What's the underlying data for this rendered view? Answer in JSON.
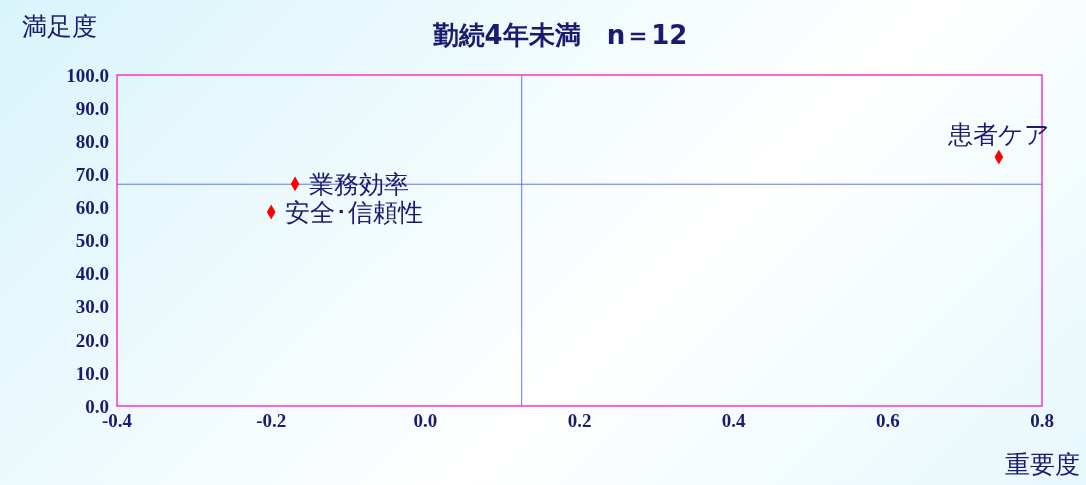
{
  "chart_data": {
    "type": "scatter",
    "title": "勤続4年未満　n＝12",
    "xlabel": "重要度",
    "ylabel": "満足度",
    "series": [
      {
        "color": "#ff0000",
        "x": [
          -0.169,
          -0.2,
          0.744
        ],
        "values": [
          67.1,
          58.6,
          75.2
        ]
      }
    ],
    "annotations": [
      {
        "text": "業務効率",
        "x": -0.169,
        "y": 67.1
      },
      {
        "text": "安全･信頼性",
        "x": -0.2,
        "y": 58.6
      },
      {
        "text": "患者ケア",
        "x": 0.744,
        "y": 75.2
      }
    ],
    "xlim": [
      -0.4,
      0.8
    ],
    "xticks": [
      -0.4,
      -0.2,
      {
        "value": 0,
        "label": "0.0"
      },
      0.2,
      0.4,
      0.6,
      0.8
    ],
    "ylim": [
      0,
      100
    ],
    "yticks": [
      {
        "value": 0,
        "label": "0.0"
      },
      {
        "value": 10,
        "label": "10.0"
      },
      {
        "value": 20,
        "label": "20.0"
      },
      {
        "value": 30,
        "label": "30.0"
      },
      {
        "value": 40,
        "label": "40.0"
      },
      {
        "value": 50,
        "label": "50.0"
      },
      {
        "value": 60,
        "label": "60.0"
      },
      {
        "value": 70,
        "label": "70.0"
      },
      {
        "value": 80,
        "label": "80.0"
      },
      {
        "value": 90,
        "label": "90.0"
      },
      {
        "value": 100,
        "label": "100.0"
      }
    ],
    "ref_lines": [
      {
        "axis": "x",
        "value": 0.125,
        "color": "#5a78f0"
      },
      {
        "axis": "y",
        "value": 67.0,
        "color": "#5a78f0"
      }
    ],
    "marker": "diamond"
  }
}
